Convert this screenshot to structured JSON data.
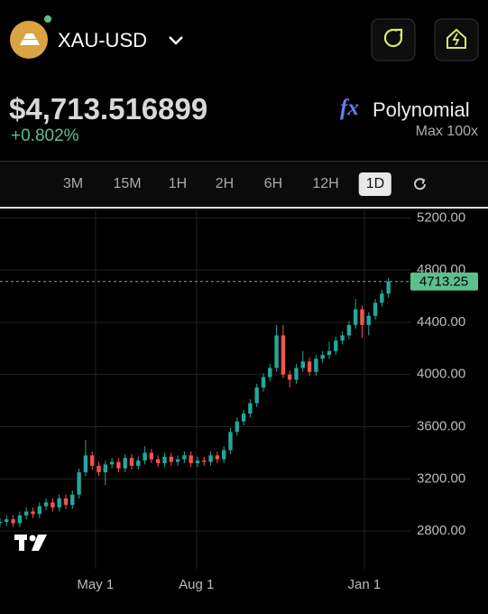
{
  "header": {
    "symbol": "XAU-USD",
    "price": "$4,713.516899",
    "change": "+0.802%",
    "fx": "fx",
    "mode": "Polynomial",
    "max_label": "Max",
    "max_value": "100x"
  },
  "timeframes": {
    "items": [
      "3M",
      "15M",
      "1H",
      "2H",
      "6H",
      "12H",
      "1D"
    ],
    "active": 6
  },
  "chart_data": {
    "type": "candlestick",
    "x": [
      0,
      6,
      12,
      18,
      24,
      30,
      36,
      42,
      48,
      54,
      60,
      66,
      72,
      78,
      84,
      90,
      96,
      102,
      108,
      114,
      120,
      126,
      132,
      138,
      144,
      150,
      156,
      162,
      168,
      174,
      180,
      186,
      192,
      198,
      204,
      210,
      216,
      222,
      228,
      234,
      240,
      246,
      252,
      258,
      264,
      270,
      276,
      282,
      288,
      294,
      300,
      306,
      312,
      318,
      324,
      330,
      336,
      342,
      348,
      354
    ],
    "open": [
      2860,
      2870,
      2890,
      2860,
      2920,
      2950,
      2930,
      2990,
      3020,
      2980,
      3050,
      3000,
      3080,
      3250,
      3380,
      3300,
      3250,
      3310,
      3330,
      3280,
      3360,
      3300,
      3340,
      3400,
      3350,
      3320,
      3370,
      3330,
      3350,
      3380,
      3320,
      3340,
      3330,
      3380,
      3350,
      3420,
      3560,
      3640,
      3700,
      3780,
      3900,
      3980,
      4050,
      4300,
      4000,
      3960,
      4050,
      4100,
      4020,
      4120,
      4150,
      4180,
      4260,
      4300,
      4380,
      4500,
      4380,
      4450,
      4550,
      4620
    ],
    "high": [
      2900,
      2920,
      2920,
      2950,
      2980,
      2980,
      3020,
      3050,
      3050,
      3080,
      3080,
      3110,
      3280,
      3500,
      3410,
      3330,
      3340,
      3360,
      3360,
      3390,
      3390,
      3370,
      3450,
      3430,
      3380,
      3400,
      3400,
      3380,
      3410,
      3410,
      3370,
      3370,
      3410,
      3410,
      3450,
      3590,
      3670,
      3730,
      3810,
      3930,
      4010,
      4080,
      4380,
      4380,
      4030,
      4080,
      4180,
      4130,
      4150,
      4180,
      4250,
      4290,
      4330,
      4410,
      4580,
      4530,
      4480,
      4580,
      4650,
      4740
    ],
    "low": [
      2830,
      2840,
      2830,
      2830,
      2890,
      2900,
      2900,
      2960,
      2950,
      2950,
      2970,
      2970,
      3050,
      3220,
      3270,
      3220,
      3150,
      3280,
      3250,
      3250,
      3270,
      3270,
      3310,
      3320,
      3290,
      3290,
      3300,
      3300,
      3320,
      3290,
      3290,
      3300,
      3300,
      3320,
      3320,
      3390,
      3530,
      3610,
      3670,
      3750,
      3870,
      3950,
      4020,
      3970,
      3900,
      3930,
      4020,
      3990,
      3990,
      4090,
      4120,
      4150,
      4230,
      4270,
      4350,
      4280,
      4300,
      4420,
      4520,
      4590
    ],
    "close": [
      2870,
      2890,
      2860,
      2920,
      2950,
      2930,
      2990,
      3020,
      2980,
      3050,
      3000,
      3080,
      3250,
      3380,
      3300,
      3250,
      3310,
      3330,
      3280,
      3360,
      3300,
      3340,
      3400,
      3350,
      3320,
      3370,
      3330,
      3350,
      3380,
      3320,
      3340,
      3330,
      3380,
      3350,
      3420,
      3560,
      3640,
      3700,
      3780,
      3900,
      3980,
      4050,
      4300,
      4000,
      3960,
      4050,
      4100,
      4020,
      4120,
      4150,
      4180,
      4260,
      4300,
      4380,
      4500,
      4380,
      4450,
      4550,
      4620,
      4713
    ],
    "up_color": "#26a69a",
    "down_color": "#ef5350",
    "xlim": [
      0,
      374
    ],
    "xticks": [
      {
        "value": 87,
        "label": "May 1"
      },
      {
        "value": 179,
        "label": "Aug 1"
      },
      {
        "value": 332,
        "label": "Jan 1"
      }
    ],
    "ylim": [
      2510,
      5265
    ],
    "yticks": [
      {
        "value": 5200,
        "label": "5200.00"
      },
      {
        "value": 4800,
        "label": "4800.00"
      },
      {
        "value": 4400,
        "label": "4400.00"
      },
      {
        "value": 4000,
        "label": "4000.00"
      },
      {
        "value": 3600,
        "label": "3600.00"
      },
      {
        "value": 3200,
        "label": "3200.00"
      },
      {
        "value": 2800,
        "label": "2800.00"
      }
    ],
    "grid": true,
    "last_price": 4713.25,
    "last_price_color": "#5cc08c"
  }
}
